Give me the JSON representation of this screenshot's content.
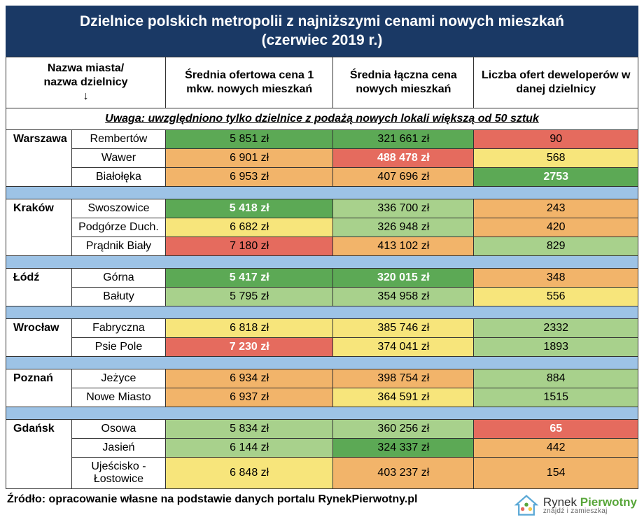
{
  "title_line1": "Dzielnice polskich metropolii z najniższymi cenami nowych mieszkań",
  "title_line2": "(czerwiec 2019 r.)",
  "headers": {
    "col1": "Nazwa miasta/\nnazwa dzielnicy\n↓",
    "col2": "Średnia ofertowa cena 1 mkw. nowych mieszkań",
    "col3": "Średnia łączna cena nowych mieszkań",
    "col4": "Liczba ofert deweloperów w danej dzielnicy"
  },
  "note": "Uwaga: uwzględniono tylko dzielnice z podażą nowych lokali większą od 50 sztuk",
  "colors": {
    "green_dark": "#5ca955",
    "green_light": "#a8d18c",
    "yellow": "#f7e57b",
    "orange": "#f2b46a",
    "red": "#e56b5e"
  },
  "groups": [
    {
      "city": "Warszawa",
      "rows": [
        {
          "district": "Rembertów",
          "c1": {
            "v": "5 851 zł",
            "bg": "green_dark"
          },
          "c2": {
            "v": "321 661 zł",
            "bg": "green_dark"
          },
          "c3": {
            "v": "90",
            "bg": "red"
          }
        },
        {
          "district": "Wawer",
          "c1": {
            "v": "6 901 zł",
            "bg": "orange"
          },
          "c2": {
            "v": "488 478 zł",
            "bg": "red",
            "bold": true
          },
          "c3": {
            "v": "568",
            "bg": "yellow"
          }
        },
        {
          "district": "Białołęka",
          "c1": {
            "v": "6 953 zł",
            "bg": "orange"
          },
          "c2": {
            "v": "407 696 zł",
            "bg": "orange"
          },
          "c3": {
            "v": "2753",
            "bg": "green_dark",
            "bold": true
          }
        }
      ]
    },
    {
      "city": "Kraków",
      "rows": [
        {
          "district": "Swoszowice",
          "c1": {
            "v": "5 418 zł",
            "bg": "green_dark",
            "bold": true
          },
          "c2": {
            "v": "336 700 zł",
            "bg": "green_light"
          },
          "c3": {
            "v": "243",
            "bg": "orange"
          }
        },
        {
          "district": "Podgórze Duch.",
          "c1": {
            "v": "6 682 zł",
            "bg": "yellow"
          },
          "c2": {
            "v": "326 948 zł",
            "bg": "green_light"
          },
          "c3": {
            "v": "420",
            "bg": "orange"
          }
        },
        {
          "district": "Prądnik Biały",
          "c1": {
            "v": "7 180 zł",
            "bg": "red"
          },
          "c2": {
            "v": "413 102 zł",
            "bg": "orange"
          },
          "c3": {
            "v": "829",
            "bg": "green_light"
          }
        }
      ]
    },
    {
      "city": "Łódź",
      "rows": [
        {
          "district": "Górna",
          "c1": {
            "v": "5 417 zł",
            "bg": "green_dark",
            "bold": true
          },
          "c2": {
            "v": "320 015 zł",
            "bg": "green_dark",
            "bold": true
          },
          "c3": {
            "v": "348",
            "bg": "orange"
          }
        },
        {
          "district": "Bałuty",
          "c1": {
            "v": "5 795 zł",
            "bg": "green_light"
          },
          "c2": {
            "v": "354 958 zł",
            "bg": "green_light"
          },
          "c3": {
            "v": "556",
            "bg": "yellow"
          }
        }
      ]
    },
    {
      "city": "Wrocław",
      "rows": [
        {
          "district": "Fabryczna",
          "c1": {
            "v": "6 818 zł",
            "bg": "yellow"
          },
          "c2": {
            "v": "385 746 zł",
            "bg": "yellow"
          },
          "c3": {
            "v": "2332",
            "bg": "green_light"
          }
        },
        {
          "district": "Psie Pole",
          "c1": {
            "v": "7 230 zł",
            "bg": "red",
            "bold": true
          },
          "c2": {
            "v": "374 041 zł",
            "bg": "yellow"
          },
          "c3": {
            "v": "1893",
            "bg": "green_light"
          }
        }
      ]
    },
    {
      "city": "Poznań",
      "rows": [
        {
          "district": "Jeżyce",
          "c1": {
            "v": "6 934 zł",
            "bg": "orange"
          },
          "c2": {
            "v": "398 754 zł",
            "bg": "orange"
          },
          "c3": {
            "v": "884",
            "bg": "green_light"
          }
        },
        {
          "district": "Nowe Miasto",
          "c1": {
            "v": "6 937 zł",
            "bg": "orange"
          },
          "c2": {
            "v": "364 591 zł",
            "bg": "yellow"
          },
          "c3": {
            "v": "1515",
            "bg": "green_light"
          }
        }
      ]
    },
    {
      "city": "Gdańsk",
      "rows": [
        {
          "district": "Osowa",
          "c1": {
            "v": "5 834 zł",
            "bg": "green_light"
          },
          "c2": {
            "v": "360 256 zł",
            "bg": "green_light"
          },
          "c3": {
            "v": "65",
            "bg": "red",
            "bold": true
          }
        },
        {
          "district": "Jasień",
          "c1": {
            "v": "6 144 zł",
            "bg": "green_light"
          },
          "c2": {
            "v": "324 337 zł",
            "bg": "green_dark"
          },
          "c3": {
            "v": "442",
            "bg": "orange"
          }
        },
        {
          "district": "Ujeścisko - Łostowice",
          "c1": {
            "v": "6 848 zł",
            "bg": "yellow"
          },
          "c2": {
            "v": "403 237 zł",
            "bg": "orange"
          },
          "c3": {
            "v": "154",
            "bg": "orange"
          }
        }
      ]
    }
  ],
  "source": "Źródło: opracowanie własne na podstawie danych portalu RynekPierwotny.pl",
  "logo": {
    "line1a": "Rynek ",
    "line1b": "Pierwotny",
    "line2": "znajdź i zamieszkaj"
  }
}
